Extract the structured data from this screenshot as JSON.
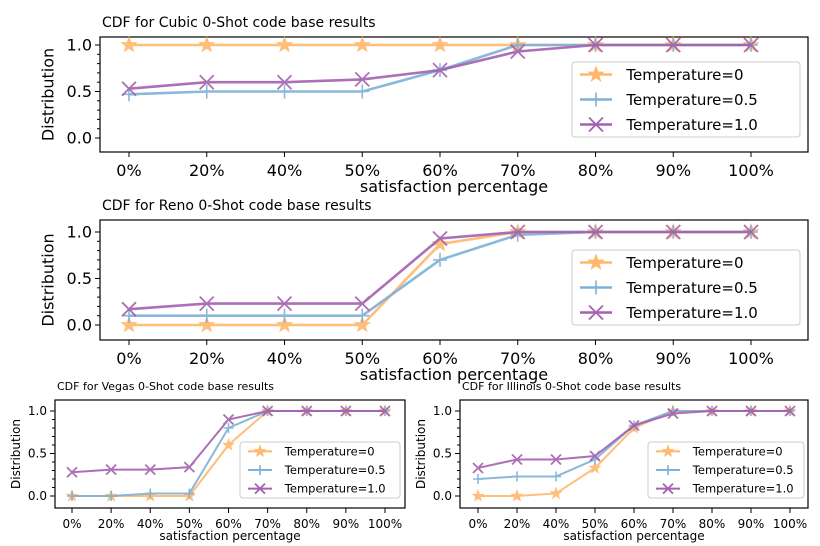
{
  "chart_data": [
    {
      "type": "line",
      "title": "CDF for Cubic 0-Shot code base results",
      "xlabel": "satisfaction percentage",
      "ylabel": "Distribution",
      "categories": [
        "0%",
        "20%",
        "40%",
        "50%",
        "60%",
        "70%",
        "80%",
        "90%",
        "100%"
      ],
      "yticks": [
        "0.0",
        "0.5",
        "1.0"
      ],
      "ylim": [
        0,
        1.0
      ],
      "legend": "center-right",
      "series": [
        {
          "name": "Temperature=0",
          "color": "#ffb86b",
          "marker": "star",
          "values": [
            1,
            1,
            1,
            1,
            1,
            1,
            1,
            1,
            1
          ]
        },
        {
          "name": "Temperature=0.5",
          "color": "#7eb1d8",
          "marker": "plus",
          "values": [
            0.47,
            0.5,
            0.5,
            0.5,
            0.73,
            1,
            1,
            1,
            1
          ]
        },
        {
          "name": "Temperature=1.0",
          "color": "#a461b0",
          "marker": "x",
          "values": [
            0.53,
            0.6,
            0.6,
            0.63,
            0.73,
            0.93,
            1,
            1,
            1
          ]
        }
      ]
    },
    {
      "type": "line",
      "title": "CDF for Reno 0-Shot code base results",
      "xlabel": "satisfaction percentage",
      "ylabel": "Distribution",
      "categories": [
        "0%",
        "20%",
        "40%",
        "50%",
        "60%",
        "70%",
        "80%",
        "90%",
        "100%"
      ],
      "yticks": [
        "0.0",
        "0.5",
        "1.0"
      ],
      "ylim": [
        0,
        1.0
      ],
      "legend": "center-right",
      "series": [
        {
          "name": "Temperature=0",
          "color": "#ffb86b",
          "marker": "star",
          "values": [
            0,
            0,
            0,
            0,
            0.87,
            1,
            1,
            1,
            1
          ]
        },
        {
          "name": "Temperature=0.5",
          "color": "#7eb1d8",
          "marker": "plus",
          "values": [
            0.1,
            0.1,
            0.1,
            0.1,
            0.7,
            0.97,
            1,
            1,
            1
          ]
        },
        {
          "name": "Temperature=1.0",
          "color": "#a461b0",
          "marker": "x",
          "values": [
            0.17,
            0.23,
            0.23,
            0.23,
            0.93,
            1,
            1,
            1,
            1
          ]
        }
      ]
    },
    {
      "type": "line",
      "title": "CDF for Vegas 0-Shot code base results",
      "xlabel": "satisfaction percentage",
      "ylabel": "Distribution",
      "categories": [
        "0%",
        "20%",
        "40%",
        "50%",
        "60%",
        "70%",
        "80%",
        "90%",
        "100%"
      ],
      "yticks": [
        "0.0",
        "0.5",
        "1.0"
      ],
      "ylim": [
        0,
        1.0
      ],
      "legend": "lower-right",
      "series": [
        {
          "name": "Temperature=0",
          "color": "#ffb86b",
          "marker": "star",
          "values": [
            0,
            0,
            0,
            0,
            0.6,
            1,
            1,
            1,
            1
          ]
        },
        {
          "name": "Temperature=0.5",
          "color": "#7eb1d8",
          "marker": "plus",
          "values": [
            0,
            0,
            0.03,
            0.03,
            0.8,
            1,
            1,
            1,
            1
          ]
        },
        {
          "name": "Temperature=1.0",
          "color": "#a461b0",
          "marker": "x",
          "values": [
            0.28,
            0.31,
            0.31,
            0.34,
            0.9,
            1,
            1,
            1,
            1
          ]
        }
      ]
    },
    {
      "type": "line",
      "title": "CDF for Illinois 0-Shot code base results",
      "xlabel": "satisfaction percentage",
      "ylabel": "Distribution",
      "categories": [
        "0%",
        "20%",
        "40%",
        "50%",
        "60%",
        "70%",
        "80%",
        "90%",
        "100%"
      ],
      "yticks": [
        "0.0",
        "0.5",
        "1.0"
      ],
      "ylim": [
        0,
        1.0
      ],
      "legend": "lower-right",
      "series": [
        {
          "name": "Temperature=0",
          "color": "#ffb86b",
          "marker": "star",
          "values": [
            0,
            0,
            0.03,
            0.33,
            0.8,
            1,
            1,
            1,
            1
          ]
        },
        {
          "name": "Temperature=0.5",
          "color": "#7eb1d8",
          "marker": "plus",
          "values": [
            0.2,
            0.23,
            0.23,
            0.43,
            0.83,
            1,
            1,
            1,
            1
          ]
        },
        {
          "name": "Temperature=1.0",
          "color": "#a461b0",
          "marker": "x",
          "values": [
            0.33,
            0.43,
            0.43,
            0.47,
            0.83,
            0.97,
            1,
            1,
            1
          ]
        }
      ]
    }
  ]
}
